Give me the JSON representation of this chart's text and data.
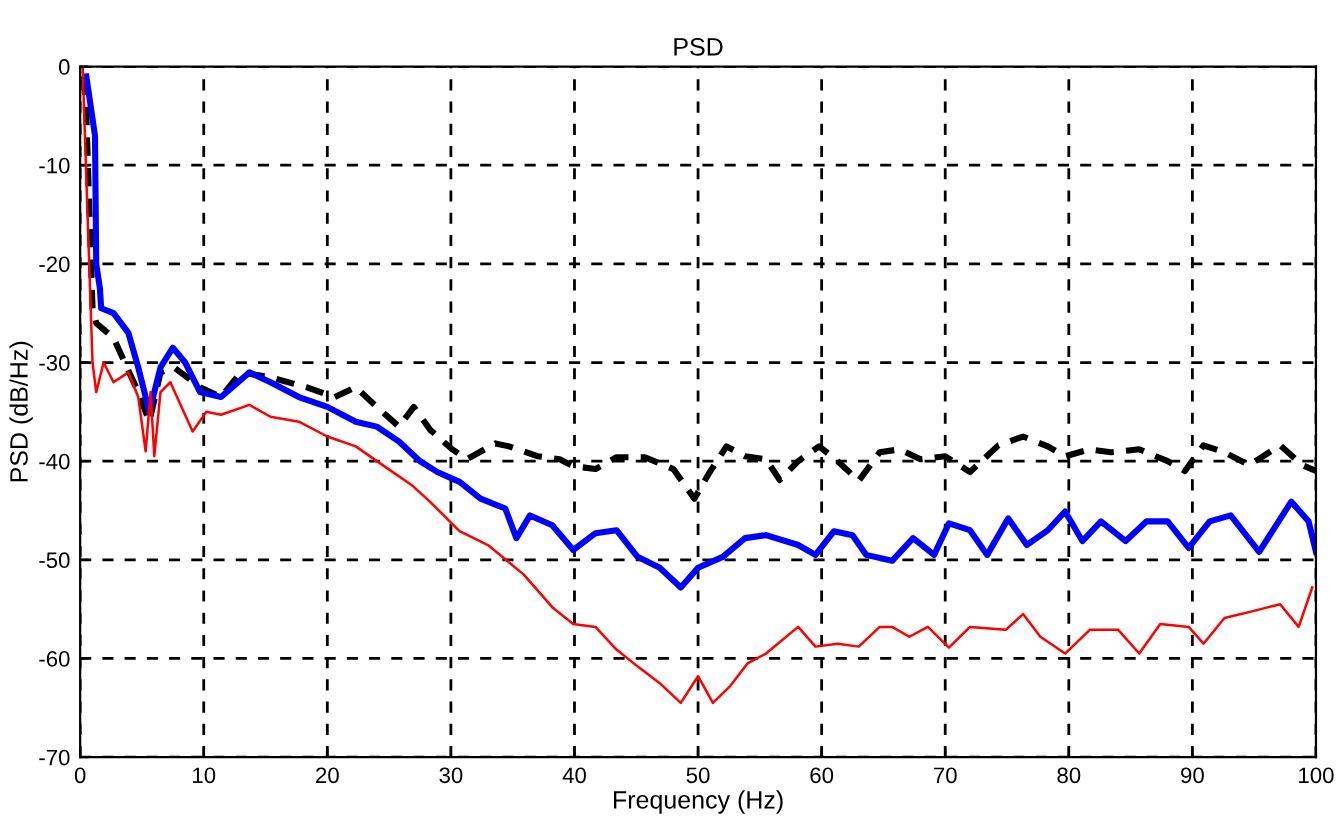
{
  "chart_data": {
    "type": "line",
    "title": "PSD",
    "xlabel": "Frequency (Hz)",
    "ylabel": "PSD (dB/Hz)",
    "xlim": [
      0,
      100
    ],
    "xticks": [
      0,
      10,
      20,
      30,
      40,
      50,
      60,
      70,
      80,
      90,
      100
    ],
    "ylim": [
      -70,
      0
    ],
    "yticks": [
      -70,
      -60,
      -50,
      -40,
      -30,
      -20,
      -10,
      0
    ],
    "grid": true,
    "legend": false,
    "series": [
      {
        "color": "#000000",
        "line_style": "dashed",
        "x": [
          0.3,
          0.5,
          1,
          1.3,
          2.7,
          4.7,
          5.6,
          6.5,
          7.6,
          9.7,
          11.4,
          13,
          15.4,
          18.3,
          20.6,
          22.3,
          24,
          25.8,
          27,
          28.3,
          30.1,
          31.3,
          33.6,
          34.7,
          37,
          38.8,
          39.9,
          41.7,
          43.4,
          45.7,
          48,
          49.7,
          50.9,
          52.3,
          53.8,
          55.5,
          56.6,
          58.1,
          59.8,
          61.3,
          63,
          64.7,
          66.3,
          68,
          70,
          72,
          74.3,
          76.3,
          78.3,
          79.7,
          81.7,
          83.4,
          85.7,
          88,
          89.4,
          90.9,
          92.6,
          94.6,
          97.1,
          98.9,
          100
        ],
        "values": [
          -1,
          -5,
          -24.5,
          -26,
          -27.5,
          -33,
          -36,
          -31,
          -30.5,
          -32.5,
          -33.5,
          -31,
          -31.5,
          -32.5,
          -33.5,
          -32.5,
          -34.5,
          -36.5,
          -34.5,
          -36.8,
          -38.8,
          -39.8,
          -38.2,
          -38.5,
          -39.5,
          -39.8,
          -40.5,
          -40.8,
          -39.6,
          -39.6,
          -40.8,
          -43.8,
          -41.2,
          -38.5,
          -39.5,
          -39.8,
          -41.9,
          -40,
          -38.5,
          -40,
          -42,
          -39.1,
          -38.8,
          -39.8,
          -39.5,
          -41.1,
          -38.4,
          -37.5,
          -38.5,
          -39.5,
          -38.8,
          -39.1,
          -38.8,
          -40,
          -41,
          -38.4,
          -39.1,
          -40.4,
          -38.4,
          -40.4,
          -41
        ]
      },
      {
        "color": "#0000ff",
        "line_style": "solid",
        "x": [
          0.5,
          1.2,
          1.3,
          1.6,
          1.7,
          2.7,
          3.9,
          4.7,
          5.6,
          6.5,
          7.5,
          8.5,
          9.7,
          11.4,
          13.7,
          15.4,
          17.7,
          20,
          22.3,
          24,
          25.8,
          27.5,
          28.9,
          30.7,
          32.4,
          34.4,
          35.3,
          36.4,
          38.2,
          39.9,
          41.7,
          43.4,
          45.1,
          46.9,
          48.6,
          50,
          52,
          53.8,
          55.5,
          58.1,
          59.5,
          61,
          62.5,
          63.6,
          65.7,
          67.4,
          69.1,
          70.3,
          72,
          73.4,
          75.1,
          76.6,
          78.3,
          79.7,
          81.1,
          82.6,
          84.6,
          86.3,
          88,
          89.7,
          91.4,
          93.1,
          95.4,
          98,
          99.4,
          100
        ],
        "values": [
          -1,
          -7,
          -20,
          -22.5,
          -24.5,
          -25,
          -27,
          -30.5,
          -35,
          -30.5,
          -28.5,
          -30,
          -33,
          -33.5,
          -31,
          -32,
          -33.5,
          -34.5,
          -36,
          -36.5,
          -38,
          -40,
          -41.1,
          -42.1,
          -43.8,
          -44.8,
          -47.8,
          -45.5,
          -46.5,
          -49,
          -47.3,
          -47,
          -49.7,
          -50.8,
          -52.8,
          -50.8,
          -49.7,
          -47.8,
          -47.5,
          -48.5,
          -49.5,
          -47.1,
          -47.5,
          -49.5,
          -50.1,
          -47.8,
          -49.5,
          -46.3,
          -47,
          -49.5,
          -45.8,
          -48.5,
          -47,
          -45.1,
          -48.1,
          -46.1,
          -48.1,
          -46.1,
          -46.1,
          -48.8,
          -46.1,
          -45.5,
          -49.2,
          -44.1,
          -46.1,
          -49.2
        ]
      },
      {
        "color": "#ff0000",
        "line_style": "solid",
        "x": [
          0.2,
          1,
          1.3,
          1.9,
          2.7,
          3.9,
          4.7,
          5.3,
          5.7,
          6,
          6.5,
          7.3,
          9.1,
          10.2,
          11.4,
          13.7,
          15.4,
          17.7,
          20,
          22.3,
          24.6,
          26.9,
          28.3,
          30.7,
          33,
          35.9,
          38.2,
          39.9,
          41.7,
          43.4,
          45.1,
          46.9,
          48.6,
          50,
          51.2,
          52.6,
          54,
          55.5,
          58.1,
          59.5,
          61.3,
          63,
          64.7,
          65.7,
          67.1,
          68.6,
          70.3,
          72,
          74.9,
          76.3,
          77.7,
          79.7,
          81.7,
          84,
          85.7,
          87.4,
          89.7,
          90.9,
          92.6,
          94.9,
          97.1,
          98.6,
          99.7
        ],
        "values": [
          0,
          -30,
          -33,
          -30,
          -32,
          -31,
          -33.5,
          -39,
          -33,
          -39.5,
          -33,
          -32,
          -37,
          -35,
          -35.3,
          -34.3,
          -35.5,
          -36,
          -37.5,
          -38.5,
          -40.5,
          -42.5,
          -44.1,
          -47.1,
          -48.5,
          -51.5,
          -54.8,
          -56.5,
          -56.8,
          -59.1,
          -60.8,
          -62.5,
          -64.5,
          -61.8,
          -64.5,
          -62.8,
          -60.5,
          -59.5,
          -56.8,
          -58.8,
          -58.5,
          -58.8,
          -56.8,
          -56.8,
          -57.8,
          -56.8,
          -58.9,
          -56.8,
          -57.1,
          -55.5,
          -57.8,
          -59.5,
          -57.1,
          -57.1,
          -59.5,
          -56.5,
          -56.8,
          -58.5,
          -55.9,
          -55.2,
          -54.5,
          -56.8,
          -52.8
        ]
      }
    ]
  }
}
